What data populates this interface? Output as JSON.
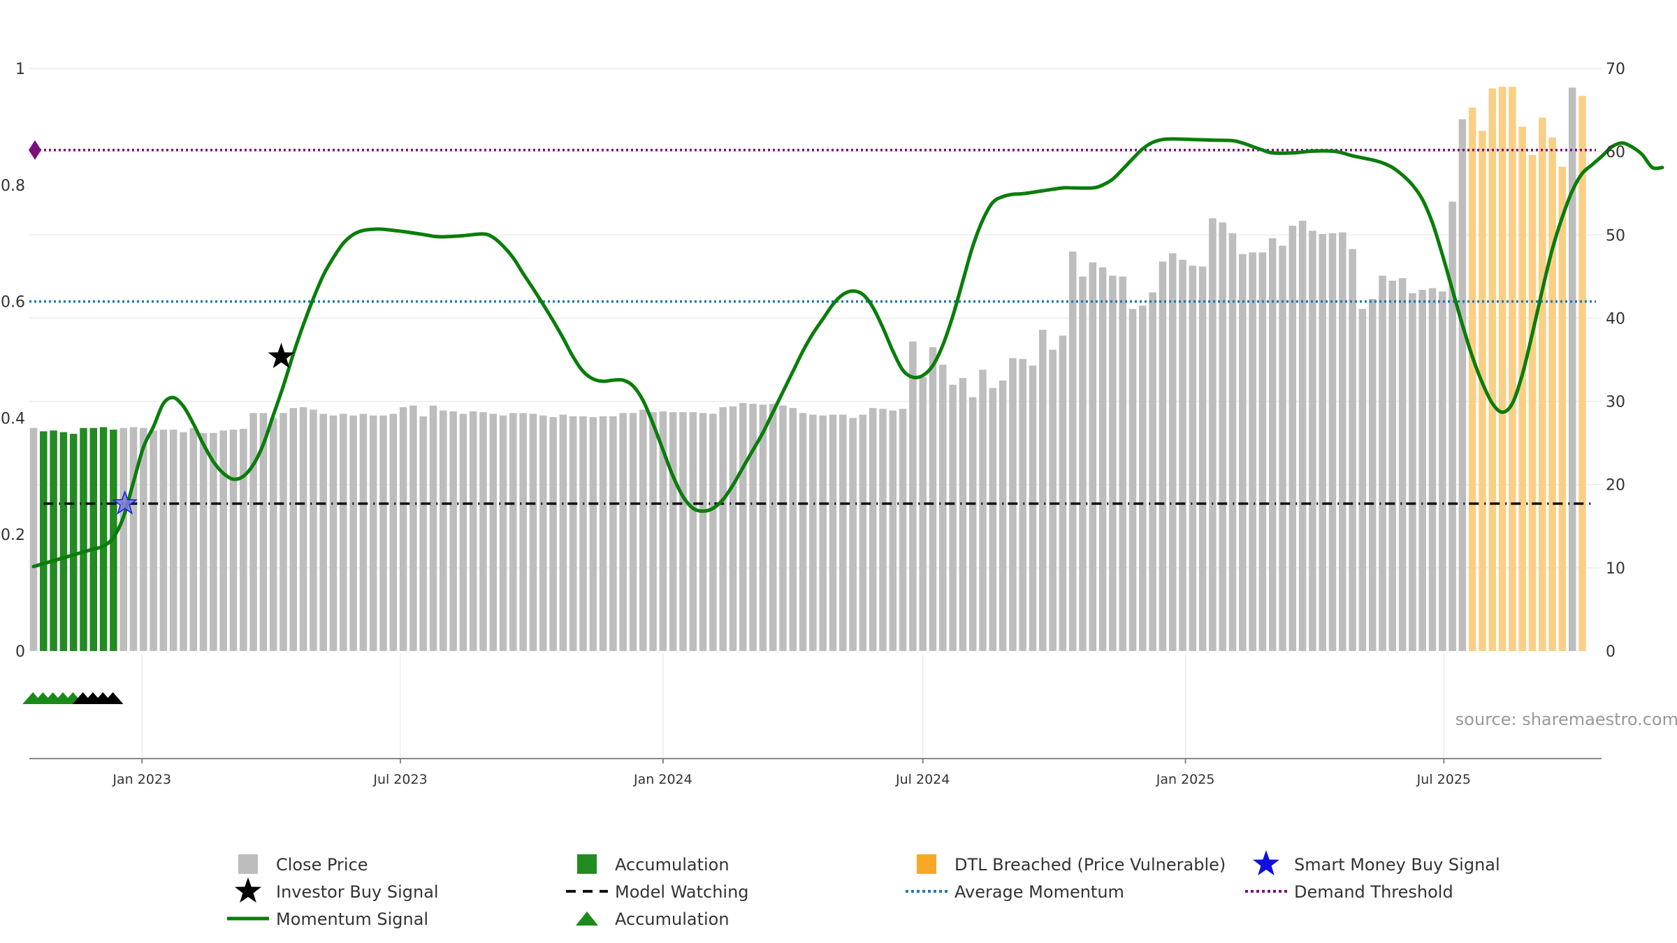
{
  "source_text": "source: sharemaestro.com",
  "colors": {
    "close_price": "#bdbdbd",
    "accumulation": "#228b22",
    "dtl_breached": "#f9cf85",
    "momentum": "#0a7d0a",
    "model_watching": "#111111",
    "average_momentum": "#1f77b4",
    "demand_threshold": "#7b0f7b",
    "smart_money": "#1a1ae6",
    "investor_buy": "#000000",
    "accumulation_marker": "#1a8a1a",
    "signal_marker_black": "#000000"
  },
  "legend": [
    {
      "label": "Close Price",
      "symbol": "square",
      "color": "#bdbdbd"
    },
    {
      "label": "Accumulation",
      "symbol": "square",
      "color": "#228b22"
    },
    {
      "label": "DTL Breached (Price Vulnerable)",
      "symbol": "square",
      "color": "#f9a825"
    },
    {
      "label": "Smart Money Buy Signal",
      "symbol": "star",
      "color": "#1010e0"
    },
    {
      "label": "Investor Buy Signal",
      "symbol": "star",
      "color": "#000000"
    },
    {
      "label": "Model Watching",
      "symbol": "dash",
      "color": "#111111"
    },
    {
      "label": "Average Momentum",
      "symbol": "dot",
      "color": "#1f77b4"
    },
    {
      "label": "Demand Threshold",
      "symbol": "dot",
      "color": "#7b0f7b"
    },
    {
      "label": "Momentum Signal",
      "symbol": "line",
      "color": "#0a7d0a"
    },
    {
      "label": "Accumulation",
      "symbol": "triangle",
      "color": "#1a8a1a"
    }
  ],
  "chart_data": {
    "type": "bar",
    "x_axis": {
      "start": "2022-10-17",
      "end": "2025-09-22",
      "tick_labels": [
        "Jan 2023",
        "Jul 2023",
        "Jan 2024",
        "Jul 2024",
        "Jan 2025",
        "Jul 2025"
      ],
      "tick_dates": [
        "2023-01-01",
        "2023-07-01",
        "2024-01-01",
        "2024-07-01",
        "2025-01-01",
        "2025-07-01"
      ]
    },
    "y_left": {
      "range": [
        0,
        1
      ],
      "ticks": [
        0,
        0.2,
        0.4,
        0.6,
        0.8,
        1
      ],
      "tick_labels": [
        "0",
        "0.2",
        "0.4",
        "0.6",
        "0.8",
        "1"
      ]
    },
    "y_right": {
      "range": [
        0,
        70
      ],
      "ticks": [
        0,
        10,
        20,
        30,
        40,
        50,
        60,
        70
      ],
      "tick_labels": [
        "0",
        "10",
        "20",
        "30",
        "40",
        "50",
        "60",
        "70"
      ]
    },
    "bars": {
      "name": "Close Price",
      "start_date": "2022-10-17",
      "interval_days": 7,
      "values": [
        26.8,
        26.4,
        26.5,
        26.3,
        26.1,
        26.8,
        26.8,
        26.9,
        26.6,
        26.8,
        26.9,
        26.8,
        26.5,
        26.6,
        26.6,
        26.3,
        26.8,
        26.2,
        26.2,
        26.5,
        26.6,
        26.7,
        28.6,
        28.6,
        28.0,
        28.6,
        29.2,
        29.3,
        29.0,
        28.5,
        28.3,
        28.5,
        28.3,
        28.5,
        28.3,
        28.3,
        28.5,
        29.3,
        29.5,
        28.2,
        29.5,
        28.9,
        28.8,
        28.5,
        28.8,
        28.7,
        28.5,
        28.3,
        28.6,
        28.6,
        28.5,
        28.3,
        28.1,
        28.4,
        28.2,
        28.2,
        28.1,
        28.2,
        28.2,
        28.6,
        28.6,
        29.0,
        28.7,
        28.8,
        28.7,
        28.7,
        28.7,
        28.6,
        28.5,
        29.3,
        29.4,
        29.8,
        29.7,
        29.6,
        29.7,
        29.5,
        29.2,
        28.6,
        28.4,
        28.3,
        28.4,
        28.4,
        28.0,
        28.4,
        29.2,
        29.1,
        28.9,
        29.1,
        37.2,
        32.9,
        36.5,
        34.4,
        32.0,
        32.8,
        30.5,
        33.8,
        31.6,
        32.5,
        35.2,
        35.1,
        34.3,
        38.6,
        36.2,
        37.9,
        48.0,
        45.0,
        46.7,
        46.1,
        45.1,
        45.0,
        41.1,
        41.5,
        43.1,
        46.8,
        47.8,
        47.0,
        46.3,
        46.2,
        52.0,
        51.5,
        50.2,
        47.7,
        47.9,
        47.9,
        49.6,
        48.7,
        51.1,
        51.7,
        50.5,
        50.1,
        50.2,
        50.3,
        48.3,
        41.1,
        42.3,
        45.1,
        44.5,
        44.8,
        43.0,
        43.4,
        43.6,
        43.2,
        54.0,
        63.9,
        65.3,
        62.5,
        67.6,
        67.8,
        67.8,
        63.0,
        59.6,
        64.1,
        61.7,
        58.2,
        67.7,
        66.7
      ],
      "accumulation_range": [
        1,
        8
      ],
      "dtl_breached_ranges": [
        [
          144,
          153
        ],
        [
          155,
          156
        ]
      ]
    },
    "series": [
      {
        "name": "Momentum Signal",
        "axis": "left",
        "points": [
          [
            0,
            0.145
          ],
          [
            2,
            0.155
          ],
          [
            4,
            0.165
          ],
          [
            6,
            0.175
          ],
          [
            7,
            0.18
          ],
          [
            8,
            0.195
          ],
          [
            9,
            0.23
          ],
          [
            10,
            0.29
          ],
          [
            11,
            0.35
          ],
          [
            12,
            0.385
          ],
          [
            13,
            0.425
          ],
          [
            14,
            0.435
          ],
          [
            15,
            0.42
          ],
          [
            16,
            0.39
          ],
          [
            17,
            0.355
          ],
          [
            18,
            0.325
          ],
          [
            19,
            0.305
          ],
          [
            20,
            0.295
          ],
          [
            21,
            0.3
          ],
          [
            22,
            0.32
          ],
          [
            23,
            0.355
          ],
          [
            24,
            0.405
          ],
          [
            25,
            0.455
          ],
          [
            26,
            0.51
          ],
          [
            27,
            0.56
          ],
          [
            28,
            0.605
          ],
          [
            29,
            0.645
          ],
          [
            30,
            0.675
          ],
          [
            31,
            0.7
          ],
          [
            32,
            0.715
          ],
          [
            33,
            0.722
          ],
          [
            34,
            0.724
          ],
          [
            35,
            0.724
          ],
          [
            37,
            0.72
          ],
          [
            39,
            0.715
          ],
          [
            40,
            0.712
          ],
          [
            41,
            0.711
          ],
          [
            43,
            0.713
          ],
          [
            45,
            0.716
          ],
          [
            46,
            0.71
          ],
          [
            47,
            0.695
          ],
          [
            48,
            0.675
          ],
          [
            49,
            0.648
          ],
          [
            50,
            0.622
          ],
          [
            51,
            0.595
          ],
          [
            52,
            0.567
          ],
          [
            53,
            0.537
          ],
          [
            54,
            0.505
          ],
          [
            55,
            0.48
          ],
          [
            56,
            0.467
          ],
          [
            57,
            0.463
          ],
          [
            58,
            0.465
          ],
          [
            59,
            0.465
          ],
          [
            60,
            0.455
          ],
          [
            61,
            0.43
          ],
          [
            62,
            0.39
          ],
          [
            63,
            0.345
          ],
          [
            64,
            0.3
          ],
          [
            65,
            0.265
          ],
          [
            66,
            0.245
          ],
          [
            67,
            0.24
          ],
          [
            68,
            0.245
          ],
          [
            69,
            0.26
          ],
          [
            70,
            0.285
          ],
          [
            71,
            0.315
          ],
          [
            72,
            0.345
          ],
          [
            73,
            0.375
          ],
          [
            74,
            0.41
          ],
          [
            75,
            0.445
          ],
          [
            76,
            0.48
          ],
          [
            77,
            0.515
          ],
          [
            78,
            0.545
          ],
          [
            79,
            0.57
          ],
          [
            80,
            0.595
          ],
          [
            81,
            0.612
          ],
          [
            82,
            0.618
          ],
          [
            83,
            0.612
          ],
          [
            84,
            0.59
          ],
          [
            85,
            0.555
          ],
          [
            86,
            0.515
          ],
          [
            87,
            0.482
          ],
          [
            88,
            0.47
          ],
          [
            89,
            0.473
          ],
          [
            90,
            0.49
          ],
          [
            91,
            0.525
          ],
          [
            92,
            0.575
          ],
          [
            93,
            0.635
          ],
          [
            94,
            0.695
          ],
          [
            95,
            0.74
          ],
          [
            96,
            0.77
          ],
          [
            97,
            0.78
          ],
          [
            98,
            0.784
          ],
          [
            99,
            0.785
          ],
          [
            101,
            0.79
          ],
          [
            103,
            0.795
          ],
          [
            104,
            0.795
          ],
          [
            106,
            0.795
          ],
          [
            107,
            0.8
          ],
          [
            108,
            0.81
          ],
          [
            109,
            0.827
          ],
          [
            110,
            0.845
          ],
          [
            111,
            0.862
          ],
          [
            112,
            0.873
          ],
          [
            113,
            0.878
          ],
          [
            114,
            0.879
          ],
          [
            116,
            0.878
          ],
          [
            118,
            0.877
          ],
          [
            120,
            0.876
          ],
          [
            121,
            0.872
          ],
          [
            122,
            0.866
          ],
          [
            123,
            0.86
          ],
          [
            124,
            0.855
          ],
          [
            126,
            0.855
          ],
          [
            128,
            0.858
          ],
          [
            130,
            0.858
          ],
          [
            131,
            0.855
          ],
          [
            132,
            0.85
          ],
          [
            134,
            0.843
          ],
          [
            135,
            0.838
          ],
          [
            136,
            0.83
          ],
          [
            137,
            0.817
          ],
          [
            138,
            0.8
          ],
          [
            139,
            0.775
          ],
          [
            140,
            0.735
          ],
          [
            141,
            0.68
          ],
          [
            142,
            0.62
          ],
          [
            143,
            0.56
          ],
          [
            144,
            0.505
          ],
          [
            145,
            0.46
          ],
          [
            146,
            0.425
          ],
          [
            147,
            0.41
          ],
          [
            148,
            0.425
          ],
          [
            149,
            0.475
          ],
          [
            150,
            0.545
          ],
          [
            151,
            0.62
          ],
          [
            152,
            0.69
          ],
          [
            153,
            0.745
          ],
          [
            154,
            0.79
          ],
          [
            155,
            0.82
          ],
          [
            156,
            0.835
          ],
          [
            157,
            0.85
          ],
          [
            158,
            0.866
          ],
          [
            159,
            0.872
          ],
          [
            160,
            0.865
          ],
          [
            161,
            0.852
          ],
          [
            162,
            0.83
          ],
          [
            163,
            0.83
          ]
        ]
      },
      {
        "name": "Model Watching",
        "axis": "left",
        "value": 0.253,
        "from_index": 1
      },
      {
        "name": "Average Momentum",
        "axis": "left",
        "value": 0.6
      },
      {
        "name": "Demand Threshold",
        "axis": "left",
        "value": 0.86
      }
    ],
    "signals": {
      "smart_money_buy": [
        {
          "index": 9,
          "value": 0.253
        }
      ],
      "investor_buy": [
        {
          "index": 25,
          "value": 0.505
        }
      ],
      "demand_marker": [
        {
          "index": 0,
          "value": 0.86
        }
      ],
      "accumulation_triangles_green": [
        0.5,
        1.5,
        2.5,
        3.5,
        4.5
      ],
      "accumulation_triangles_black": [
        5.5,
        6.5,
        7.5,
        8.5
      ]
    }
  }
}
